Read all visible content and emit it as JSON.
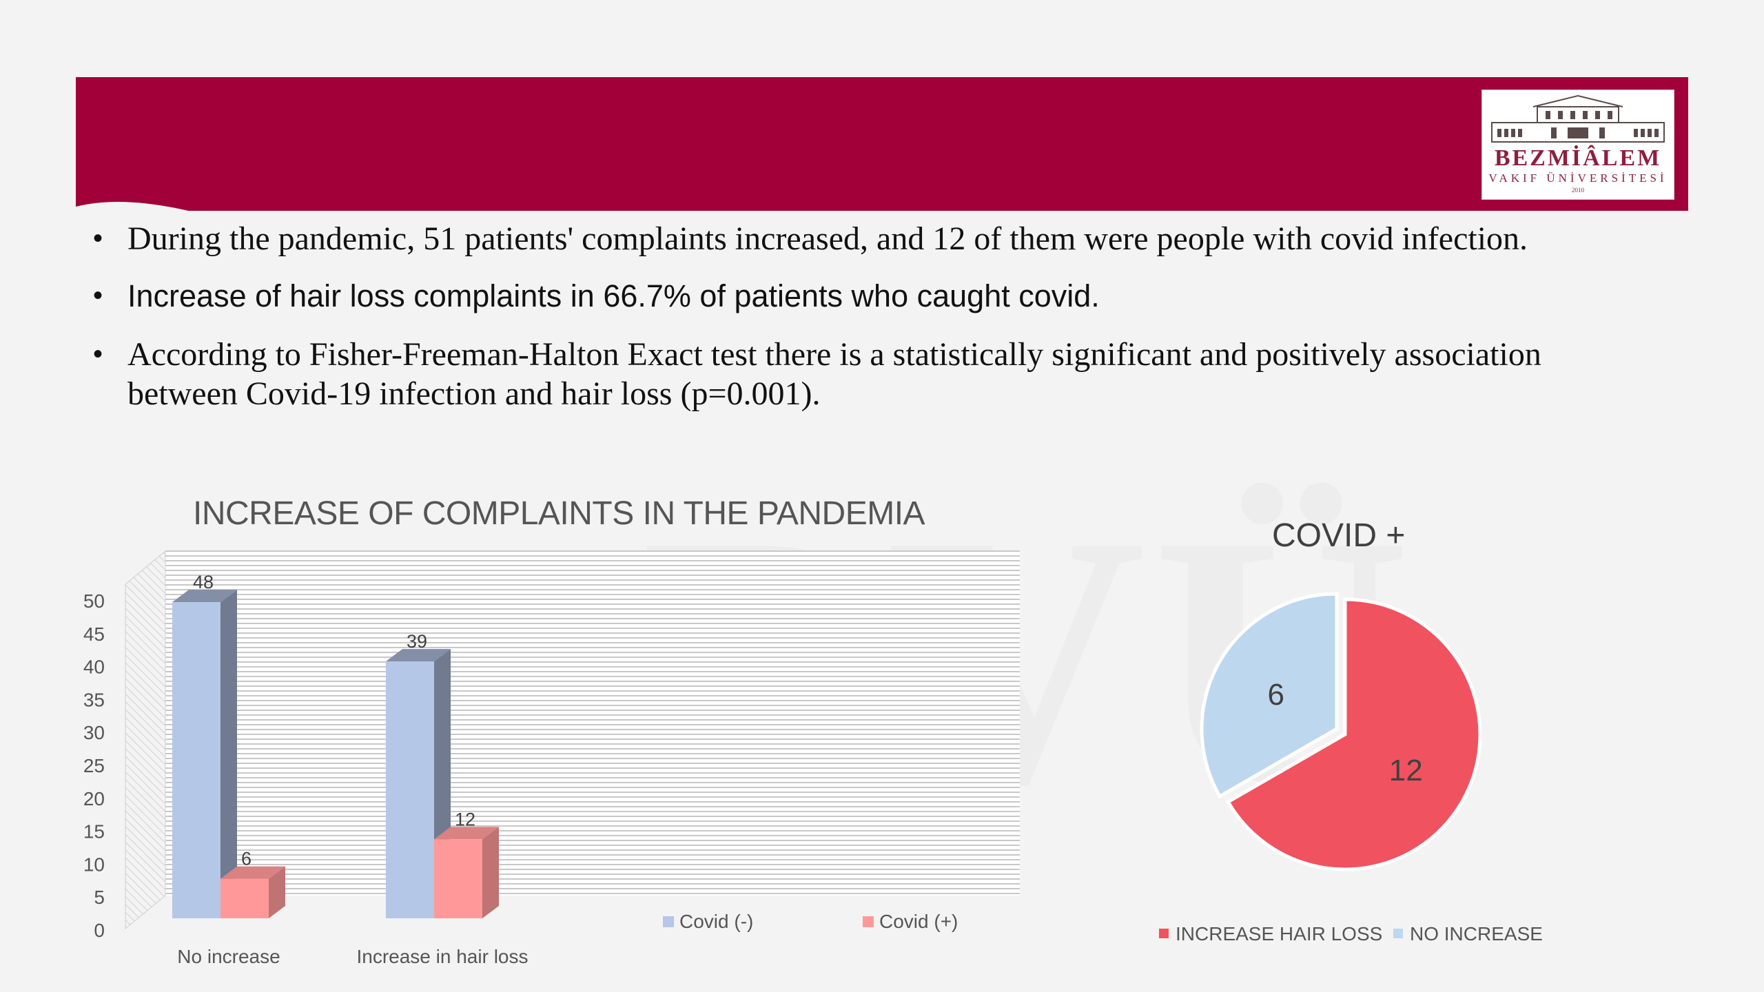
{
  "logo": {
    "name": "BEZMİÂLEM",
    "subtitle": "VAKIF ÜNİVERSİTESİ",
    "year": "2010"
  },
  "bullets": [
    "During the pandemic, 51 patients' complaints increased, and 12 of them were people with covid infection.",
    "Increase of hair loss complaints in 66.7% of patients who caught covid.",
    "According to  Fisher-Freeman-Halton Exact test there is a statistically significant and positively association between Covid-19 infection and hair loss (p=0.001)."
  ],
  "colors": {
    "banner": "#a10038",
    "covid_neg": "#b4c7e7",
    "covid_pos": "#ff9999",
    "pie_increase": "#f0525f",
    "pie_no_increase": "#bdd7ee"
  },
  "chart_data": [
    {
      "type": "bar",
      "title": "INCREASE OF COMPLAINTS IN THE PANDEMIA",
      "categories": [
        "No increase",
        "Increase in hair loss"
      ],
      "series": [
        {
          "name": "Covid (-)",
          "values": [
            48,
            39
          ]
        },
        {
          "name": "Covid (+)",
          "values": [
            6,
            12
          ]
        }
      ],
      "ylim": [
        0,
        50
      ],
      "yticks": [
        0,
        5,
        10,
        15,
        20,
        25,
        30,
        35,
        40,
        45,
        50
      ],
      "grid": true,
      "legend": "bottom-right"
    },
    {
      "type": "pie",
      "title": "COVID +",
      "labels": [
        "INCREASE HAIR LOSS",
        "NO INCREASE"
      ],
      "values": [
        12,
        6
      ],
      "legend": "bottom"
    }
  ]
}
